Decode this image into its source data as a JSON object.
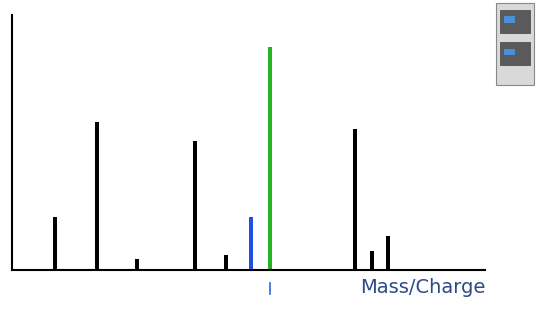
{
  "chart_data": {
    "type": "bar",
    "x_label": "Mass/Charge",
    "x": [
      43,
      85,
      125,
      183,
      214,
      239,
      258,
      343,
      360,
      376
    ],
    "values": [
      53,
      148,
      11,
      129,
      15,
      53,
      223,
      141,
      19,
      34
    ],
    "colors": [
      "#000000",
      "#000000",
      "#000000",
      "#000000",
      "#000000",
      "#1f4fe6",
      "#22b422",
      "#000000",
      "#000000",
      "#000000"
    ],
    "xlim": [
      0,
      473
    ],
    "ylim": [
      0,
      255
    ],
    "xticks": [],
    "yticks": [],
    "tick_labels": false,
    "grid": false
  }
}
